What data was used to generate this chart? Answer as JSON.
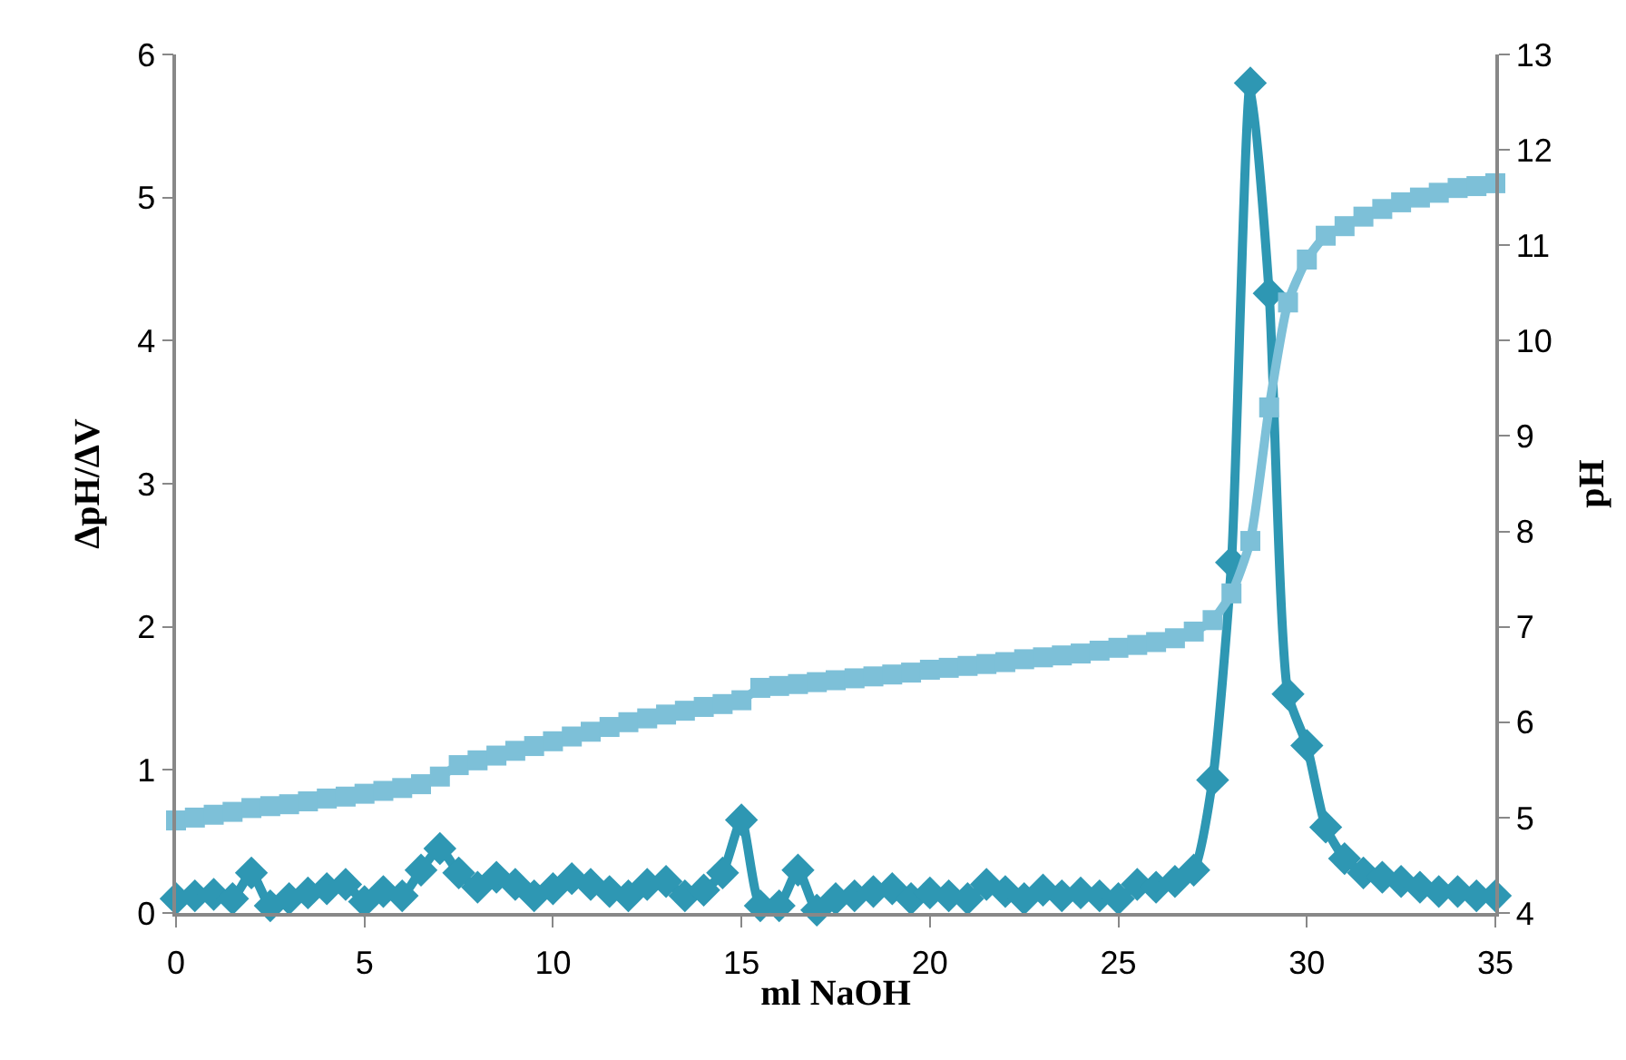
{
  "chart_data": {
    "type": "line",
    "xlabel": "ml NaOH",
    "ylabel": "ΔpH/ΔV",
    "y2label": "pH",
    "x": [
      0,
      0.5,
      1,
      1.5,
      2,
      2.5,
      3,
      3.5,
      4,
      4.5,
      5,
      5.5,
      6,
      6.5,
      7,
      7.5,
      8,
      8.5,
      9,
      9.5,
      10,
      10.5,
      11,
      11.5,
      12,
      12.5,
      13,
      13.5,
      14,
      14.5,
      15,
      15.5,
      16,
      16.5,
      17,
      17.5,
      18,
      18.5,
      19,
      19.5,
      20,
      20.5,
      21,
      21.5,
      22,
      22.5,
      23,
      23.5,
      24,
      24.5,
      25,
      25.5,
      26,
      26.5,
      27,
      27.5,
      28,
      28.5,
      29,
      29.5,
      30,
      30.5,
      31,
      31.5,
      32,
      32.5,
      33,
      33.5,
      34,
      34.5,
      35
    ],
    "series": [
      {
        "color": "#2e97b3",
        "marker": "diamond",
        "values": [
          0.1,
          0.12,
          0.13,
          0.1,
          0.28,
          0.05,
          0.1,
          0.14,
          0.17,
          0.2,
          0.08,
          0.15,
          0.12,
          0.3,
          0.45,
          0.28,
          0.18,
          0.25,
          0.2,
          0.12,
          0.17,
          0.24,
          0.2,
          0.15,
          0.12,
          0.2,
          0.22,
          0.12,
          0.16,
          0.28,
          0.65,
          0.05,
          0.05,
          0.3,
          0.02,
          0.1,
          0.12,
          0.15,
          0.17,
          0.1,
          0.14,
          0.12,
          0.1,
          0.2,
          0.15,
          0.1,
          0.16,
          0.12,
          0.14,
          0.12,
          0.1,
          0.2,
          0.18,
          0.22,
          0.3,
          0.93,
          2.45,
          5.8,
          4.33,
          1.53,
          1.17,
          0.6,
          0.38,
          0.28,
          0.25,
          0.22,
          0.18,
          0.15,
          0.15,
          0.12,
          0.12
        ]
      },
      {
        "color": "#7dc0d8",
        "marker": "square",
        "axis": "y2",
        "values": [
          4.97,
          5.0,
          5.03,
          5.06,
          5.1,
          5.12,
          5.14,
          5.17,
          5.2,
          5.22,
          5.25,
          5.28,
          5.31,
          5.35,
          5.43,
          5.55,
          5.6,
          5.65,
          5.7,
          5.75,
          5.8,
          5.85,
          5.9,
          5.95,
          6.0,
          6.04,
          6.08,
          6.12,
          6.16,
          6.19,
          6.23,
          6.36,
          6.38,
          6.4,
          6.42,
          6.44,
          6.46,
          6.48,
          6.5,
          6.52,
          6.55,
          6.57,
          6.59,
          6.61,
          6.63,
          6.66,
          6.68,
          6.7,
          6.72,
          6.75,
          6.78,
          6.81,
          6.84,
          6.88,
          6.95,
          7.07,
          7.35,
          7.9,
          9.3,
          10.4,
          10.85,
          11.1,
          11.2,
          11.3,
          11.38,
          11.45,
          11.5,
          11.55,
          11.6,
          11.62,
          11.65
        ]
      }
    ],
    "xlim": [
      0,
      35
    ],
    "xticks": [
      0,
      5,
      10,
      15,
      20,
      25,
      30,
      35
    ],
    "ylim": [
      0,
      6
    ],
    "yticks": [
      0,
      1,
      2,
      3,
      4,
      5,
      6
    ],
    "y2lim": [
      4,
      13
    ],
    "y2ticks": [
      4,
      5,
      6,
      7,
      8,
      9,
      10,
      11,
      12,
      13
    ]
  }
}
